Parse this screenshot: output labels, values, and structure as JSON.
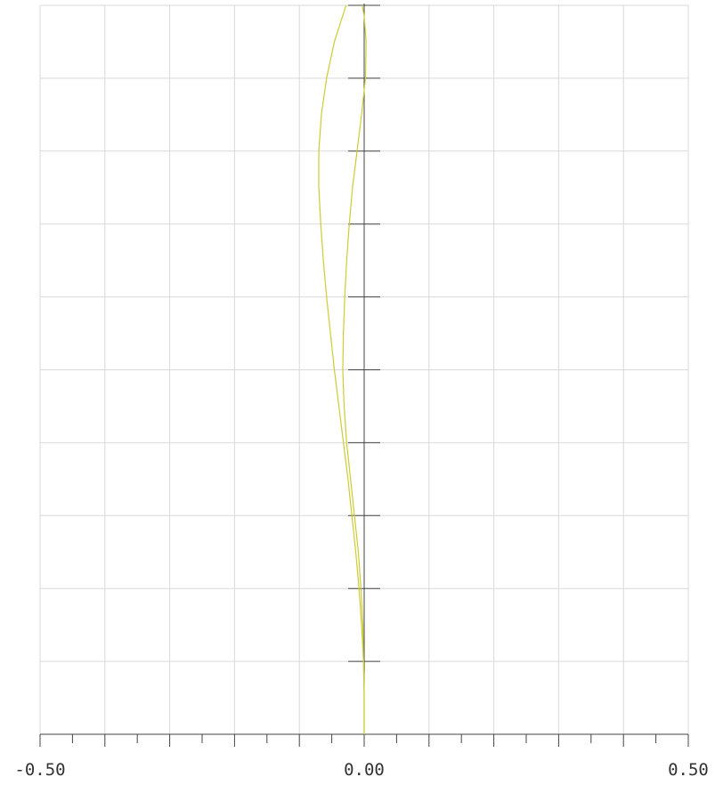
{
  "chart_data": {
    "type": "line",
    "title": "",
    "xlabel": "",
    "ylabel": "",
    "xlim": [
      -0.5,
      0.5
    ],
    "ylim": [
      0,
      1
    ],
    "grid": true,
    "x_tick_labels": [
      {
        "value": -0.5,
        "label": "-0.50"
      },
      {
        "value": 0.0,
        "label": "0.00"
      },
      {
        "value": 0.5,
        "label": "0.50"
      }
    ],
    "x_major_step": 0.1,
    "x_minor_step": 0.05,
    "y_major_step": 0.1,
    "colors": {
      "grid": "#d9d9d9",
      "axis": "#444444",
      "series": "#cccc33"
    },
    "series": [
      {
        "points": [
          [
            0.0,
            0.0
          ],
          [
            0.0,
            0.05
          ],
          [
            -0.001,
            0.1
          ],
          [
            -0.004,
            0.15
          ],
          [
            -0.008,
            0.2
          ],
          [
            -0.013,
            0.25
          ],
          [
            -0.019,
            0.3
          ],
          [
            -0.025,
            0.35
          ],
          [
            -0.032,
            0.4
          ],
          [
            -0.039,
            0.45
          ],
          [
            -0.046,
            0.5
          ],
          [
            -0.052,
            0.55
          ],
          [
            -0.058,
            0.6
          ],
          [
            -0.063,
            0.65
          ],
          [
            -0.067,
            0.7
          ],
          [
            -0.07,
            0.75
          ],
          [
            -0.07,
            0.8
          ],
          [
            -0.066,
            0.85
          ],
          [
            -0.058,
            0.9
          ],
          [
            -0.046,
            0.95
          ],
          [
            -0.028,
            1.0
          ]
        ]
      },
      {
        "points": [
          [
            0.0,
            0.0
          ],
          [
            0.0,
            0.05
          ],
          [
            -0.001,
            0.1
          ],
          [
            -0.002,
            0.15
          ],
          [
            -0.005,
            0.2
          ],
          [
            -0.009,
            0.25
          ],
          [
            -0.015,
            0.3
          ],
          [
            -0.021,
            0.35
          ],
          [
            -0.027,
            0.4
          ],
          [
            -0.031,
            0.45
          ],
          [
            -0.033,
            0.5
          ],
          [
            -0.032,
            0.55
          ],
          [
            -0.03,
            0.6
          ],
          [
            -0.027,
            0.65
          ],
          [
            -0.023,
            0.7
          ],
          [
            -0.018,
            0.75
          ],
          [
            -0.011,
            0.8
          ],
          [
            -0.004,
            0.85
          ],
          [
            0.002,
            0.9
          ],
          [
            0.003,
            0.95
          ],
          [
            0.0,
            0.985
          ],
          [
            -0.003,
            1.0
          ]
        ]
      }
    ]
  }
}
